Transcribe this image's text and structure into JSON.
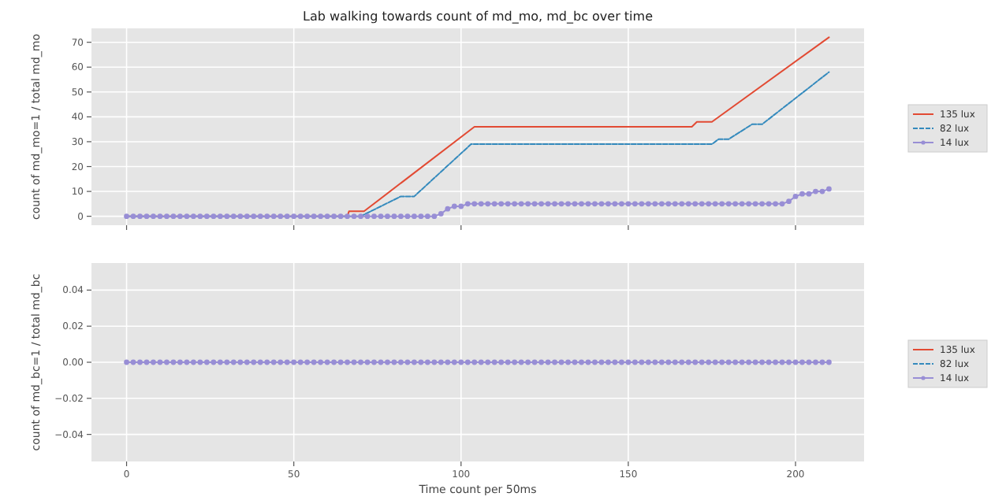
{
  "chart_data": [
    {
      "type": "line",
      "title": "Lab walking towards count of md_mo, md_bc over time",
      "ylabel": "count of md_mo=1 / total md_mo",
      "xlim": [
        -10.5,
        220.5
      ],
      "xticks": [
        0,
        50,
        100,
        150,
        200
      ],
      "ylim": [
        -3.6,
        75.6
      ],
      "yticks": [
        0,
        10,
        20,
        30,
        40,
        50,
        60,
        70
      ],
      "tick_labels": "y",
      "grid": true,
      "legend": "right",
      "series": [
        {
          "name": "135 lux",
          "color": "#e24a33",
          "line_style": "solid",
          "marker": "none",
          "x": [
            0,
            66,
            66.5,
            71,
            104,
            169,
            170.5,
            175,
            210
          ],
          "values": [
            0,
            0,
            2,
            2,
            36,
            36,
            38,
            38,
            72
          ]
        },
        {
          "name": "82 lux",
          "color": "#348abd",
          "line_style": "dashed",
          "marker": "none",
          "x": [
            0,
            70,
            82,
            86,
            103,
            175,
            177,
            180,
            187,
            190,
            210
          ],
          "values": [
            0,
            0,
            8,
            8,
            29,
            29,
            31,
            31,
            37,
            37,
            58
          ]
        },
        {
          "name": "14 lux",
          "color": "#988ed5",
          "line_style": "solid",
          "marker": "circle",
          "x": [
            0,
            2,
            4,
            6,
            8,
            10,
            12,
            14,
            16,
            18,
            20,
            22,
            24,
            26,
            28,
            30,
            32,
            34,
            36,
            38,
            40,
            42,
            44,
            46,
            48,
            50,
            52,
            54,
            56,
            58,
            60,
            62,
            64,
            66,
            68,
            70,
            72,
            74,
            76,
            78,
            80,
            82,
            84,
            86,
            88,
            90,
            92,
            94,
            96,
            98,
            100,
            102,
            104,
            106,
            108,
            110,
            112,
            114,
            116,
            118,
            120,
            122,
            124,
            126,
            128,
            130,
            132,
            134,
            136,
            138,
            140,
            142,
            144,
            146,
            148,
            150,
            152,
            154,
            156,
            158,
            160,
            162,
            164,
            166,
            168,
            170,
            172,
            174,
            176,
            178,
            180,
            182,
            184,
            186,
            188,
            190,
            192,
            194,
            196,
            198,
            200,
            202,
            204,
            206,
            208,
            210
          ],
          "values": [
            0,
            0,
            0,
            0,
            0,
            0,
            0,
            0,
            0,
            0,
            0,
            0,
            0,
            0,
            0,
            0,
            0,
            0,
            0,
            0,
            0,
            0,
            0,
            0,
            0,
            0,
            0,
            0,
            0,
            0,
            0,
            0,
            0,
            0,
            0,
            0,
            0,
            0,
            0,
            0,
            0,
            0,
            0,
            0,
            0,
            0,
            0,
            1,
            3,
            4,
            4,
            5,
            5,
            5,
            5,
            5,
            5,
            5,
            5,
            5,
            5,
            5,
            5,
            5,
            5,
            5,
            5,
            5,
            5,
            5,
            5,
            5,
            5,
            5,
            5,
            5,
            5,
            5,
            5,
            5,
            5,
            5,
            5,
            5,
            5,
            5,
            5,
            5,
            5,
            5,
            5,
            5,
            5,
            5,
            5,
            5,
            5,
            5,
            5,
            6,
            8,
            9,
            9,
            10,
            10,
            11
          ]
        }
      ]
    },
    {
      "type": "line",
      "xlabel": "Time count per 50ms",
      "ylabel": "count of md_bc=1 / total md_bc",
      "xlim": [
        -10.5,
        220.5
      ],
      "xticks": [
        0,
        50,
        100,
        150,
        200
      ],
      "ylim": [
        -0.055,
        0.055
      ],
      "yticks": [
        {
          "value": -0.04,
          "label": "−0.04"
        },
        {
          "value": -0.02,
          "label": "−0.02"
        },
        {
          "value": 0,
          "label": "0.00"
        },
        {
          "value": 0.02,
          "label": "0.02"
        },
        {
          "value": 0.04,
          "label": "0.04"
        }
      ],
      "grid": true,
      "legend": "right",
      "series": [
        {
          "name": "135 lux",
          "color": "#e24a33",
          "line_style": "solid",
          "marker": "none"
        },
        {
          "name": "82 lux",
          "color": "#348abd",
          "line_style": "dashed",
          "marker": "none"
        },
        {
          "name": "14 lux",
          "color": "#988ed5",
          "line_style": "solid",
          "marker": "circle",
          "x": [
            0,
            2,
            4,
            6,
            8,
            10,
            12,
            14,
            16,
            18,
            20,
            22,
            24,
            26,
            28,
            30,
            32,
            34,
            36,
            38,
            40,
            42,
            44,
            46,
            48,
            50,
            52,
            54,
            56,
            58,
            60,
            62,
            64,
            66,
            68,
            70,
            72,
            74,
            76,
            78,
            80,
            82,
            84,
            86,
            88,
            90,
            92,
            94,
            96,
            98,
            100,
            102,
            104,
            106,
            108,
            110,
            112,
            114,
            116,
            118,
            120,
            122,
            124,
            126,
            128,
            130,
            132,
            134,
            136,
            138,
            140,
            142,
            144,
            146,
            148,
            150,
            152,
            154,
            156,
            158,
            160,
            162,
            164,
            166,
            168,
            170,
            172,
            174,
            176,
            178,
            180,
            182,
            184,
            186,
            188,
            190,
            192,
            194,
            196,
            198,
            200,
            202,
            204,
            206,
            208,
            210
          ],
          "values": [
            0,
            0,
            0,
            0,
            0,
            0,
            0,
            0,
            0,
            0,
            0,
            0,
            0,
            0,
            0,
            0,
            0,
            0,
            0,
            0,
            0,
            0,
            0,
            0,
            0,
            0,
            0,
            0,
            0,
            0,
            0,
            0,
            0,
            0,
            0,
            0,
            0,
            0,
            0,
            0,
            0,
            0,
            0,
            0,
            0,
            0,
            0,
            0,
            0,
            0,
            0,
            0,
            0,
            0,
            0,
            0,
            0,
            0,
            0,
            0,
            0,
            0,
            0,
            0,
            0,
            0,
            0,
            0,
            0,
            0,
            0,
            0,
            0,
            0,
            0,
            0,
            0,
            0,
            0,
            0,
            0,
            0,
            0,
            0,
            0,
            0,
            0,
            0,
            0,
            0,
            0,
            0,
            0,
            0,
            0,
            0,
            0,
            0,
            0,
            0,
            0,
            0,
            0,
            0,
            0,
            0
          ]
        }
      ]
    }
  ]
}
